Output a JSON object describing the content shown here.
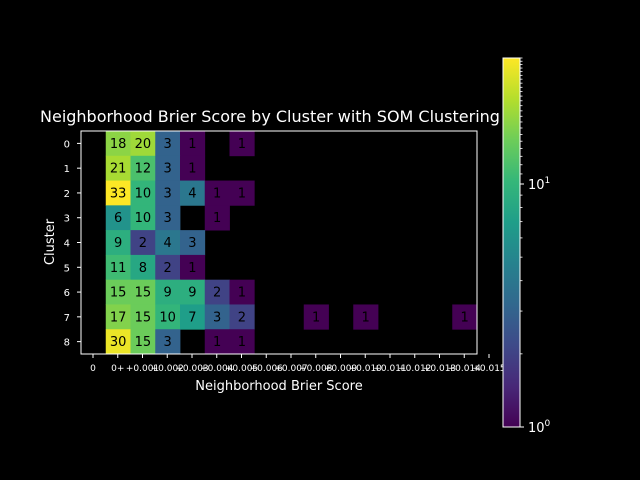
{
  "chart_data": {
    "type": "heatmap",
    "title": "Neighborhood Brier Score by Cluster with SOM Clustering",
    "xlabel": "Neighborhood Brier Score",
    "ylabel": "Cluster",
    "y_categories": [
      "0",
      "1",
      "2",
      "3",
      "4",
      "5",
      "6",
      "7",
      "8"
    ],
    "x_tick_labels": [
      "0",
      "0+",
      "+0.001",
      "+0.002",
      "+0.003",
      "+0.004",
      "+0.005",
      "+0.006",
      "+0.007",
      "+0.008",
      "+0.009",
      "+0.010",
      "+0.011",
      "+0.012",
      "+0.013",
      "+0.014",
      "+0.015"
    ],
    "color_scale": "log",
    "colormap": "viridis",
    "colorbar": {
      "min": 1,
      "max": 33,
      "tick_labels": [
        "10^0",
        "10^1"
      ],
      "tick_values": [
        1,
        10
      ]
    },
    "values": [
      [
        null,
        18,
        20,
        3,
        1,
        null,
        1,
        null,
        null,
        null,
        null,
        null,
        null,
        null,
        null,
        null
      ],
      [
        null,
        21,
        12,
        3,
        1,
        null,
        null,
        null,
        null,
        null,
        null,
        null,
        null,
        null,
        null,
        null
      ],
      [
        null,
        33,
        10,
        3,
        4,
        1,
        1,
        null,
        null,
        null,
        null,
        null,
        null,
        null,
        null,
        null
      ],
      [
        null,
        6,
        10,
        3,
        null,
        1,
        null,
        null,
        null,
        null,
        null,
        null,
        null,
        null,
        null,
        null
      ],
      [
        null,
        9,
        2,
        4,
        3,
        null,
        null,
        null,
        null,
        null,
        null,
        null,
        null,
        null,
        null,
        null
      ],
      [
        null,
        11,
        8,
        2,
        1,
        null,
        null,
        null,
        null,
        null,
        null,
        null,
        null,
        null,
        null,
        null
      ],
      [
        null,
        15,
        15,
        9,
        9,
        2,
        1,
        null,
        null,
        null,
        null,
        null,
        null,
        null,
        null,
        null
      ],
      [
        null,
        17,
        15,
        10,
        7,
        3,
        2,
        null,
        null,
        1,
        null,
        1,
        null,
        null,
        null,
        1
      ],
      [
        null,
        30,
        15,
        3,
        null,
        1,
        1,
        null,
        null,
        null,
        null,
        null,
        null,
        null,
        null,
        null
      ]
    ]
  }
}
